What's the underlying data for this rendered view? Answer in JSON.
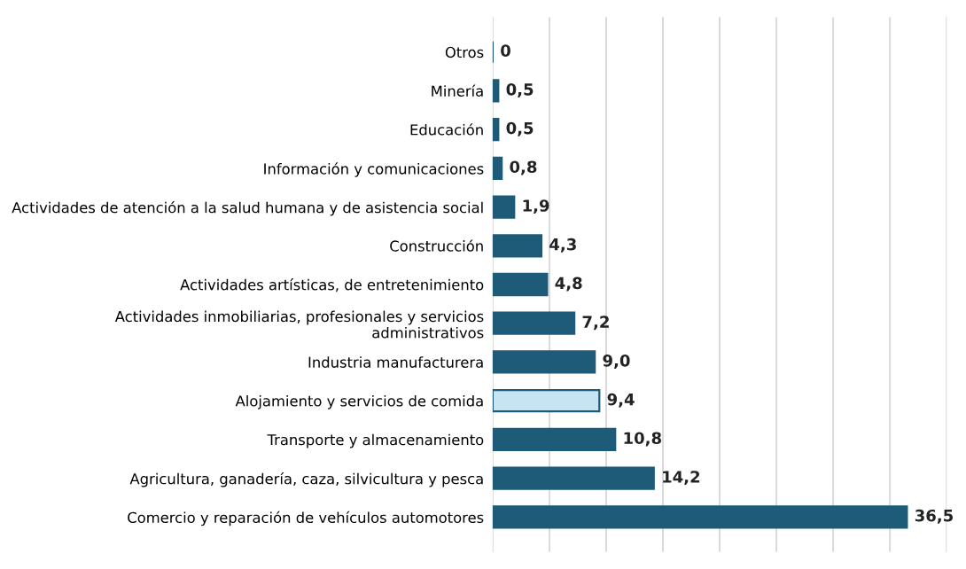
{
  "chart_data": {
    "type": "bar",
    "orientation": "horizontal",
    "categories": [
      "Otros",
      "Minería",
      "Educación",
      "Información y comunicaciones",
      "Actividades de atención a la salud humana y de asistencia social",
      "Construcción",
      "Actividades artísticas, de entretenimiento",
      "Actividades inmobiliarias, profesionales y servicios\nadministrativos",
      "Industria manufacturera",
      "Alojamiento y servicios de comida",
      "Transporte y almacenamiento",
      "Agricultura, ganadería, caza, silvicultura y pesca",
      "Comercio y reparación de vehículos automotores"
    ],
    "values": [
      0,
      0.5,
      0.5,
      0.8,
      1.9,
      4.3,
      4.8,
      7.2,
      9.0,
      9.4,
      10.8,
      14.2,
      36.5
    ],
    "value_labels": [
      "0",
      "0,5",
      "0,5",
      "0,8",
      "1,9",
      "4,3",
      "4,8",
      "7,2",
      "9,0",
      "9,4",
      "10,8",
      "14,2",
      "36,5"
    ],
    "colors": [
      "#1d5b79",
      "#1d5b79",
      "#1d5b79",
      "#1d5b79",
      "#1d5b79",
      "#1d5b79",
      "#1d5b79",
      "#1d5b79",
      "#1d5b79",
      "#c6e4f2",
      "#1d5b79",
      "#1d5b79",
      "#1d5b79"
    ],
    "xlim": [
      0,
      40
    ],
    "xticks": [
      {
        "value": 0,
        "label": null
      },
      {
        "value": 5,
        "label": null
      },
      {
        "value": 10,
        "label": null
      },
      {
        "value": 15,
        "label": null
      },
      {
        "value": 20,
        "label": null
      },
      {
        "value": 25,
        "label": null
      },
      {
        "value": 30,
        "label": null
      },
      {
        "value": 35,
        "label": null
      },
      {
        "value": 40,
        "label": null
      }
    ],
    "grid": "x",
    "tick_labels": "y"
  }
}
